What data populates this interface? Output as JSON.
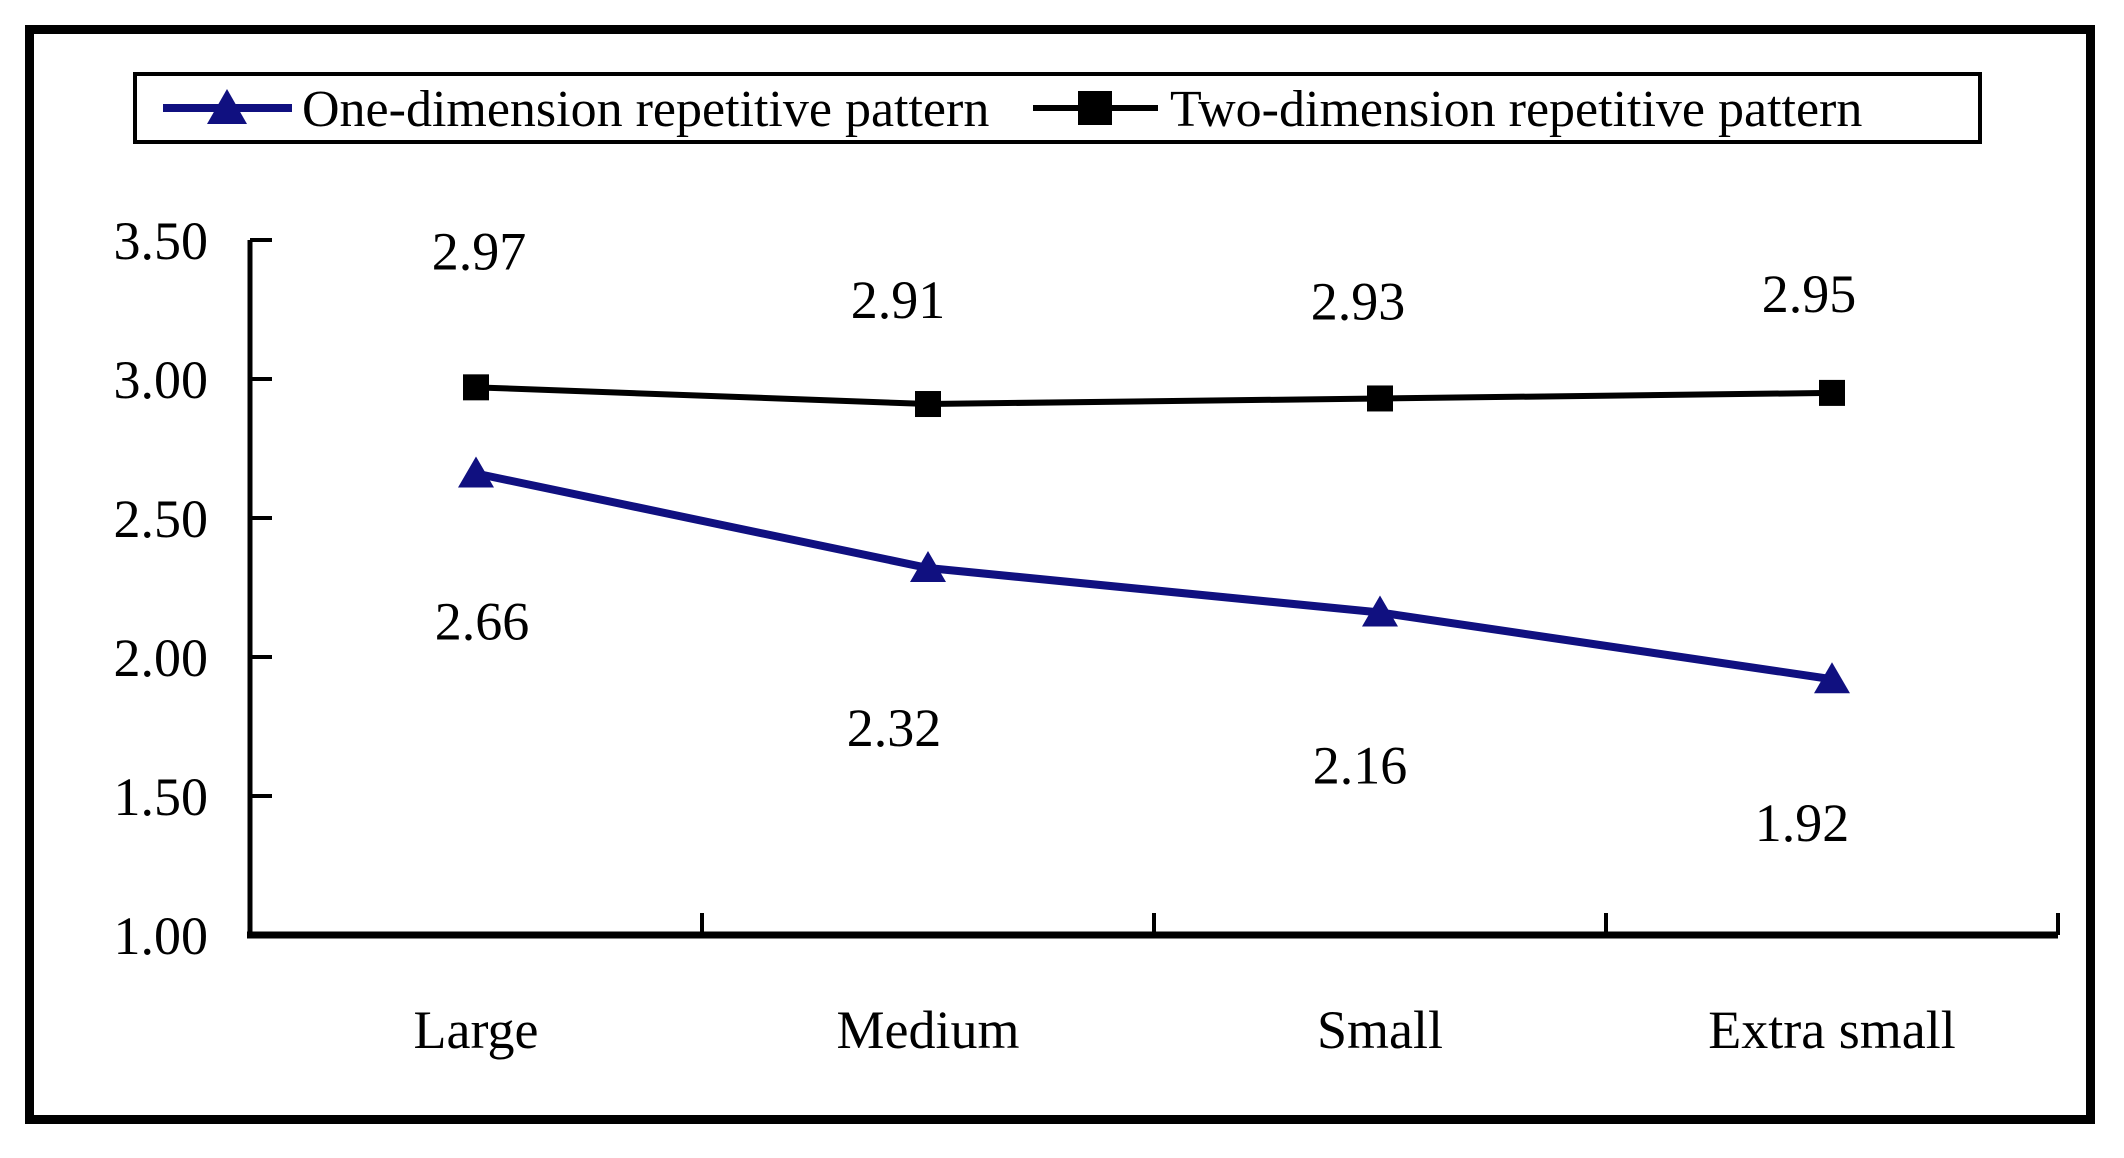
{
  "chart_data": {
    "type": "line",
    "title": "",
    "categories": [
      "Large",
      "Medium",
      "Small",
      "Extra small"
    ],
    "series": [
      {
        "name": "One-dimension repetitive pattern",
        "color": "#101080",
        "marker": "triangle",
        "values": [
          2.66,
          2.32,
          2.16,
          1.92
        ],
        "labels": [
          "2.66",
          "2.32",
          "2.16",
          "1.92"
        ],
        "label_position": "below"
      },
      {
        "name": "Two-dimension repetitive pattern",
        "color": "#000000",
        "marker": "square",
        "values": [
          2.97,
          2.91,
          2.93,
          2.95
        ],
        "labels": [
          "2.97",
          "2.91",
          "2.93",
          "2.95"
        ],
        "label_position": "above"
      }
    ],
    "y_axis": {
      "min": 1.0,
      "max": 3.5,
      "step": 0.5,
      "tick_labels": [
        "3.50",
        "3.00",
        "2.50",
        "2.00",
        "1.50",
        "1.00"
      ]
    },
    "x_axis": {
      "tick_marks": "inside"
    },
    "legend_position": "top",
    "grid": false,
    "axis_color": "#000000",
    "border_color": "#000000",
    "background": "#ffffff"
  },
  "legend": {
    "items": [
      {
        "label": "One-dimension repetitive pattern"
      },
      {
        "label": "Two-dimension repetitive pattern"
      }
    ]
  }
}
